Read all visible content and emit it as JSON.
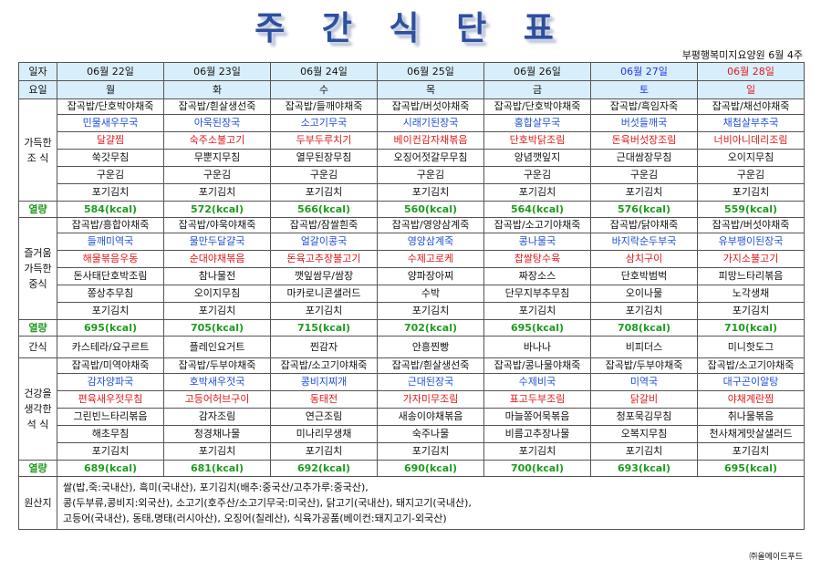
{
  "title": "주 간 식 단 표",
  "org": "부평행복미지요양원  6월 4주",
  "header": {
    "date_label": "일자",
    "day_label": "요일",
    "dates": [
      "06월 22일",
      "06월 23일",
      "06월 24일",
      "06월 25일",
      "06월 26일",
      "06월 27일",
      "06월 28일"
    ],
    "days": [
      "월",
      "화",
      "수",
      "목",
      "금",
      "토",
      "일"
    ]
  },
  "breakfast": {
    "label1": "가득한",
    "label2": "조  식",
    "kcal_label": "열량",
    "tops": [
      "잡곡밥/단호박야채죽",
      "잡곡밥/흰살생선죽",
      "잡곡밥/들깨야채죽",
      "잡곡밥/버섯야채죽",
      "잡곡밥/단호박야채죽",
      "잡곡밥/흑임자죽",
      "잡곡밥/채선야채죽"
    ],
    "soup": [
      "민물새우무국",
      "아욱된장국",
      "소고기무국",
      "시래기된장국",
      "홍합살무국",
      "버섯들깨국",
      "채첩살부추국"
    ],
    "main": [
      "달걀찜",
      "숙주소불고기",
      "두부두루치기",
      "베이컨감자채볶음",
      "단호박닭조림",
      "돈육버섯장조림",
      "너비아니데리조림"
    ],
    "side": [
      "쑥갓무침",
      "무뿐지무침",
      "열무된장무침",
      "오징어젓갈무무침",
      "앙념깻잎지",
      "근대쌈장무침",
      "오이지무침"
    ],
    "gim": [
      "구운김",
      "구운김",
      "구운김",
      "구운김",
      "구운김",
      "구운김",
      "구운김"
    ],
    "kimchi": [
      "포기김치",
      "포기김치",
      "포기김치",
      "포기김치",
      "포기김치",
      "포기김치",
      "포기김치"
    ],
    "kcal": [
      "584(kcal)",
      "572(kcal)",
      "566(kcal)",
      "560(kcal)",
      "564(kcal)",
      "576(kcal)",
      "559(kcal)"
    ]
  },
  "lunch": {
    "label1": "즐거움",
    "label2": "가득한",
    "label3": "중식",
    "kcal_label": "열량",
    "tops": [
      "잡곡밥/흥합야채죽",
      "잡곡밥/야욱야채죽",
      "잡곡밥/잠쌀흰죽",
      "잡곡밥/영양삼계죽",
      "잡곡밥/소고기야채죽",
      "잡곡밥/닭야채죽",
      "잡곡밥/버섯야채죽"
    ],
    "soup": [
      "들깨미역국",
      "물만두달걀국",
      "얼갈이콩국",
      "영양삼계죽",
      "콩나물국",
      "바지락순두부국",
      "유부팽이된장국"
    ],
    "main": [
      "해물볶음우동",
      "순대야채볶음",
      "돈육고추장불고기",
      "수제고로케",
      "찹쌀탕수육",
      "삼치구이",
      "가지소불고기"
    ],
    "side": [
      "돈사태단호박조림",
      "참나물전",
      "깻잎쌈무/쌈장",
      "양파장아찌",
      "짜장소스",
      "단호박범벅",
      "피망느타리볶음"
    ],
    "side2": [
      "쫑상추무침",
      "오이지무침",
      "마카로니콘샐러드",
      "수박",
      "단무지부추무침",
      "오이나물",
      "노각생채"
    ],
    "kimchi": [
      "포기김치",
      "포기김치",
      "포기김치",
      "포기김치",
      "포기김치",
      "포기김치",
      "포기김치"
    ],
    "kcal": [
      "695(kcal)",
      "705(kcal)",
      "715(kcal)",
      "702(kcal)",
      "695(kcal)",
      "708(kcal)",
      "710(kcal)"
    ]
  },
  "snack": {
    "label": "간식",
    "items": [
      "카스테라/요구르트",
      "플레인요거트",
      "찐감자",
      "안흥찐빵",
      "바나나",
      "비피더스",
      "미니핫도그"
    ]
  },
  "dinner": {
    "label1": "건강을",
    "label2": "생각한",
    "label3": "석  식",
    "kcal_label": "열량",
    "tops": [
      "잡곡밥/미역야채죽",
      "잡곡밥/두부야채죽",
      "잡곡밥/소고기야채죽",
      "잡곡밥/흰살생선죽",
      "잡곡밥/콩나물야채죽",
      "잡곡밥/두부야채죽",
      "잡곡밥/소고기야채죽"
    ],
    "soup": [
      "감자양파국",
      "호박새우젓국",
      "콩비지찌개",
      "근대된장국",
      "수제비국",
      "미역국",
      "대구곤이알탕"
    ],
    "main": [
      "편육새우젓무침",
      "고등어허브구이",
      "동태전",
      "가자미무조림",
      "표고두부조림",
      "닭갈비",
      "야채계란찜"
    ],
    "side": [
      "그린빈느타리볶음",
      "감자조림",
      "연근조림",
      "새송이야채볶음",
      "마늘쫑어묵볶음",
      "청포묵김무침",
      "취나물볶음"
    ],
    "side2": [
      "해초무침",
      "청경채나물",
      "미나리무생채",
      "숙주나물",
      "비름고추장나물",
      "오복지무침",
      "천사채게맛살샐러드"
    ],
    "kimchi": [
      "포기김치",
      "포기김치",
      "포기김치",
      "포기김치",
      "포기김치",
      "포기김치",
      "포기김치"
    ],
    "kcal": [
      "689(kcal)",
      "681(kcal)",
      "692(kcal)",
      "690(kcal)",
      "700(kcal)",
      "693(kcal)",
      "695(kcal)"
    ]
  },
  "origin": {
    "label": "원산지",
    "lines": [
      "쌀(밥,죽:국내산), 흑미(국내산), 포기김치(배추:중국산/고추가루:중국산),",
      "콩(두부류,콩비지:외국산), 소고기(호주산/소고기무국:미국산), 닭고기(국내산), 돼지고기(국내산),",
      "고등어(국내산), 동태,명태(러시아산), 오징어(칠레산), 식육가공품(베이컨:돼지고기-외국산)"
    ]
  },
  "company": "㈜올메이드푸드",
  "colors": {
    "blue": "#1f4fd8",
    "red": "#e01919",
    "green": "#1e9c1e",
    "header_bg": "#d9eefb",
    "title": "#2e4f9c"
  }
}
